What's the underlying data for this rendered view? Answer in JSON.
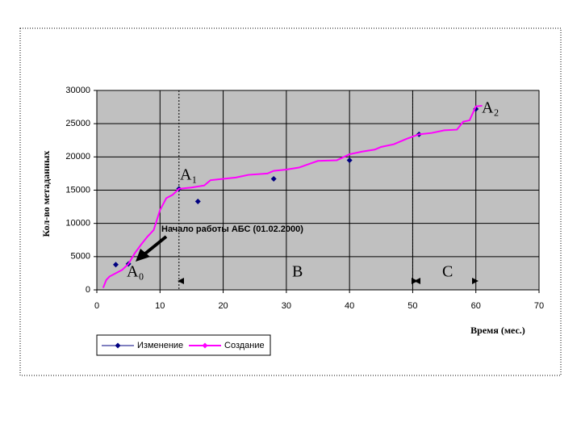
{
  "chart_data": {
    "type": "line",
    "y_label": "Кол-во метаданных",
    "x_label": "Время (мес.)",
    "xlim": [
      0,
      70
    ],
    "xticks": [
      0,
      10,
      20,
      30,
      40,
      50,
      60,
      70
    ],
    "ylim": [
      0,
      30000
    ],
    "yticks": [
      0,
      5000,
      10000,
      15000,
      20000,
      25000,
      30000
    ],
    "grid": true,
    "series": [
      {
        "name": "Изменение",
        "color": "#000080",
        "style": "markers",
        "x": [
          3,
          5,
          13,
          16,
          28,
          40,
          51,
          60
        ],
        "values": [
          3800,
          3900,
          15200,
          13300,
          16700,
          19500,
          23400,
          27200
        ]
      },
      {
        "name": "Создание",
        "color": "#ff00ff",
        "style": "line",
        "x": [
          1,
          1.5,
          2,
          3,
          4,
          5,
          6,
          7,
          8,
          9,
          10,
          11,
          12,
          13,
          15,
          17,
          18,
          20,
          22,
          24,
          27,
          28,
          30,
          32,
          35,
          38,
          40,
          42,
          44,
          45,
          47,
          49,
          51,
          53,
          55,
          57,
          58,
          59,
          60,
          61
        ],
        "values": [
          300,
          1500,
          2000,
          2500,
          3000,
          3900,
          5500,
          6800,
          8000,
          9000,
          12000,
          13800,
          14300,
          15200,
          15400,
          15700,
          16500,
          16700,
          16900,
          17300,
          17500,
          17900,
          18100,
          18400,
          19400,
          19500,
          20400,
          20800,
          21100,
          21500,
          21900,
          22700,
          23400,
          23600,
          24000,
          24100,
          25300,
          25500,
          27600,
          27700
        ]
      }
    ],
    "annotations": [
      "Начало работы АБС (01.02.2000)",
      "A₀",
      "A₁",
      "A₂",
      "B",
      "C"
    ]
  }
}
